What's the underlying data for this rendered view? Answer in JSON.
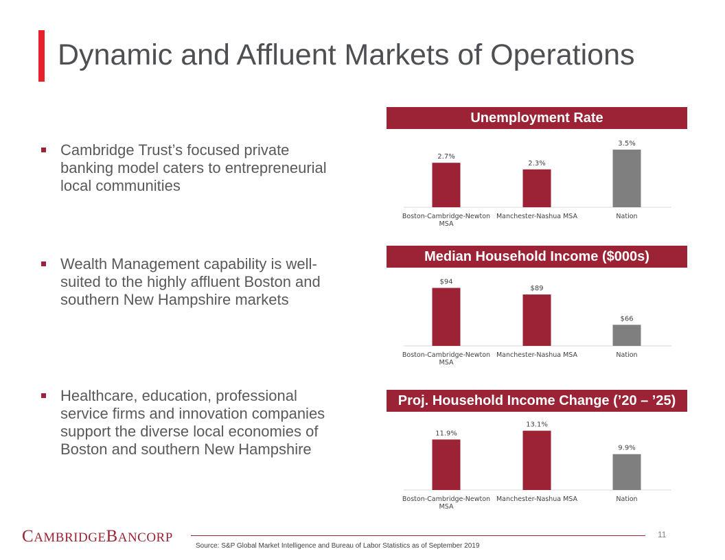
{
  "slide": {
    "title": "Dynamic and Affluent Markets of Operations",
    "page_number": "11",
    "source": "Source: S&P Global Market Intelligence and Bureau of Labor Statistics as of September 2019",
    "logo": "CAMBRIDGE BANCORP",
    "bullets": [
      "Cambridge Trust’s focused private banking model caters to entrepreneurial local communities",
      "Wealth Management capability is well-suited to the highly affluent Boston and southern New Hampshire markets",
      "Healthcare, education, professional service firms and innovation companies support the diverse local economies of Boston and southern New Hampshire"
    ],
    "colors": {
      "accent_red": "#e8202b",
      "chart_red": "#9b2335",
      "nation_gray": "#7f7f7f"
    }
  },
  "chart_data": [
    {
      "type": "bar",
      "title": "Unemployment Rate",
      "categories": [
        "Boston-Cambridge-Newton MSA",
        "Manchester-Nashua MSA",
        "Nation"
      ],
      "values": [
        2.7,
        2.3,
        3.5
      ],
      "labels": [
        "2.7%",
        "2.3%",
        "3.5%"
      ],
      "ylim": [
        0,
        4
      ],
      "grid": false
    },
    {
      "type": "bar",
      "title": "Median Household Income ($000s)",
      "categories": [
        "Boston-Cambridge-Newton MSA",
        "Manchester-Nashua MSA",
        "Nation"
      ],
      "values": [
        94,
        89,
        66
      ],
      "labels": [
        "$94",
        "$89",
        "$66"
      ],
      "ylim": [
        50,
        100
      ],
      "grid": false
    },
    {
      "type": "bar",
      "title": "Proj. Household Income Change (’20 – ’25)",
      "categories": [
        "Boston-Cambridge-Newton MSA",
        "Manchester-Nashua MSA",
        "Nation"
      ],
      "values": [
        11.9,
        13.1,
        9.9
      ],
      "labels": [
        "11.9%",
        "13.1%",
        "9.9%"
      ],
      "ylim": [
        5,
        14
      ],
      "grid": false
    }
  ]
}
